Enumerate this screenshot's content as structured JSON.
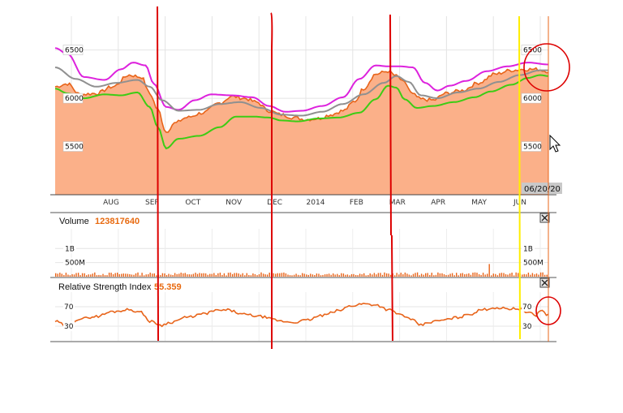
{
  "chart_data": [
    {
      "type": "area",
      "panel": "price",
      "x_ticks": [
        "AUG",
        "SEP",
        "OCT",
        "NOV",
        "DEC",
        "2014",
        "FEB",
        "MAR",
        "APR",
        "MAY",
        "JUN"
      ],
      "y_ticks": [
        6500,
        6000,
        5500
      ],
      "ylim": [
        5000,
        6850
      ],
      "date_label": "06/20/20",
      "n_points": 240,
      "series": [
        {
          "name": "price",
          "color": "#e8641a",
          "fill": "#fbb089",
          "anchors": [
            [
              0,
              6120
            ],
            [
              6,
              6150
            ],
            [
              12,
              6040
            ],
            [
              20,
              6050
            ],
            [
              28,
              6120
            ],
            [
              36,
              6240
            ],
            [
              42,
              6220
            ],
            [
              46,
              6050
            ],
            [
              50,
              5880
            ],
            [
              54,
              5650
            ],
            [
              58,
              5740
            ],
            [
              64,
              5800
            ],
            [
              72,
              5850
            ],
            [
              80,
              5950
            ],
            [
              86,
              6020
            ],
            [
              92,
              6000
            ],
            [
              98,
              5960
            ],
            [
              104,
              5870
            ],
            [
              110,
              5830
            ],
            [
              116,
              5800
            ],
            [
              122,
              5780
            ],
            [
              128,
              5790
            ],
            [
              134,
              5830
            ],
            [
              140,
              5870
            ],
            [
              146,
              5970
            ],
            [
              150,
              6100
            ],
            [
              156,
              6250
            ],
            [
              162,
              6280
            ],
            [
              166,
              6230
            ],
            [
              170,
              6160
            ],
            [
              174,
              6040
            ],
            [
              178,
              5990
            ],
            [
              184,
              5980
            ],
            [
              190,
              6050
            ],
            [
              198,
              6080
            ],
            [
              206,
              6160
            ],
            [
              214,
              6250
            ],
            [
              222,
              6290
            ],
            [
              228,
              6300
            ],
            [
              234,
              6300
            ],
            [
              240,
              6280
            ]
          ]
        },
        {
          "name": "upper-band",
          "color": "#dd22dd",
          "anchors": [
            [
              0,
              6520
            ],
            [
              6,
              6460
            ],
            [
              14,
              6220
            ],
            [
              24,
              6190
            ],
            [
              32,
              6300
            ],
            [
              38,
              6370
            ],
            [
              44,
              6340
            ],
            [
              48,
              6150
            ],
            [
              54,
              5910
            ],
            [
              60,
              5880
            ],
            [
              68,
              5980
            ],
            [
              76,
              6040
            ],
            [
              86,
              6030
            ],
            [
              96,
              6010
            ],
            [
              104,
              5920
            ],
            [
              112,
              5860
            ],
            [
              120,
              5870
            ],
            [
              130,
              5920
            ],
            [
              140,
              6010
            ],
            [
              148,
              6200
            ],
            [
              156,
              6340
            ],
            [
              162,
              6330
            ],
            [
              168,
              6330
            ],
            [
              174,
              6320
            ],
            [
              180,
              6160
            ],
            [
              186,
              6080
            ],
            [
              192,
              6130
            ],
            [
              200,
              6180
            ],
            [
              210,
              6280
            ],
            [
              220,
              6330
            ],
            [
              230,
              6370
            ],
            [
              240,
              6350
            ]
          ]
        },
        {
          "name": "moving-average",
          "color": "#909090",
          "anchors": [
            [
              0,
              6320
            ],
            [
              10,
              6200
            ],
            [
              20,
              6120
            ],
            [
              30,
              6160
            ],
            [
              40,
              6190
            ],
            [
              46,
              6120
            ],
            [
              52,
              5980
            ],
            [
              60,
              5870
            ],
            [
              70,
              5880
            ],
            [
              80,
              5940
            ],
            [
              90,
              5960
            ],
            [
              100,
              5900
            ],
            [
              110,
              5830
            ],
            [
              120,
              5820
            ],
            [
              130,
              5860
            ],
            [
              140,
              5940
            ],
            [
              150,
              6040
            ],
            [
              160,
              6160
            ],
            [
              166,
              6230
            ],
            [
              172,
              6170
            ],
            [
              178,
              6030
            ],
            [
              186,
              6000
            ],
            [
              196,
              6060
            ],
            [
              206,
              6100
            ],
            [
              216,
              6170
            ],
            [
              226,
              6240
            ],
            [
              236,
              6290
            ],
            [
              240,
              6290
            ]
          ]
        },
        {
          "name": "lower-band",
          "color": "#3ccc14",
          "anchors": [
            [
              0,
              6100
            ],
            [
              6,
              6050
            ],
            [
              14,
              6000
            ],
            [
              24,
              6040
            ],
            [
              32,
              6030
            ],
            [
              40,
              6060
            ],
            [
              46,
              5910
            ],
            [
              50,
              5700
            ],
            [
              54,
              5480
            ],
            [
              60,
              5580
            ],
            [
              70,
              5610
            ],
            [
              80,
              5700
            ],
            [
              88,
              5810
            ],
            [
              96,
              5810
            ],
            [
              104,
              5800
            ],
            [
              110,
              5770
            ],
            [
              118,
              5760
            ],
            [
              128,
              5790
            ],
            [
              138,
              5800
            ],
            [
              148,
              5850
            ],
            [
              156,
              5990
            ],
            [
              162,
              6130
            ],
            [
              166,
              6110
            ],
            [
              170,
              5990
            ],
            [
              176,
              5900
            ],
            [
              184,
              5920
            ],
            [
              194,
              5960
            ],
            [
              204,
              6010
            ],
            [
              212,
              6070
            ],
            [
              222,
              6140
            ],
            [
              230,
              6210
            ],
            [
              236,
              6240
            ],
            [
              240,
              6230
            ]
          ]
        }
      ]
    },
    {
      "type": "bar",
      "panel": "volume",
      "title": "Volume",
      "current_value": "123817640",
      "y_ticks": [
        "1B",
        "500M"
      ],
      "y_tick_values": [
        1000000000,
        500000000
      ],
      "ylim": [
        0,
        1700000000
      ],
      "n_points": 240,
      "base_volume": 90000000,
      "spike": {
        "index": 211,
        "value": 450000000
      }
    },
    {
      "type": "line",
      "panel": "rsi",
      "title": "Relative Strength Index",
      "current_value": "55.359",
      "y_ticks": [
        70,
        30
      ],
      "ylim": [
        0,
        100
      ],
      "n_points": 240,
      "series": [
        {
          "name": "rsi",
          "color": "#e8641a",
          "anchors": [
            [
              0,
              40
            ],
            [
              5,
              32
            ],
            [
              12,
              45
            ],
            [
              20,
              50
            ],
            [
              28,
              60
            ],
            [
              36,
              64
            ],
            [
              42,
              58
            ],
            [
              46,
              40
            ],
            [
              52,
              32
            ],
            [
              56,
              38
            ],
            [
              64,
              48
            ],
            [
              72,
              55
            ],
            [
              78,
              62
            ],
            [
              84,
              63
            ],
            [
              92,
              54
            ],
            [
              100,
              50
            ],
            [
              106,
              44
            ],
            [
              110,
              40
            ],
            [
              116,
              38
            ],
            [
              122,
              42
            ],
            [
              130,
              52
            ],
            [
              138,
              62
            ],
            [
              144,
              72
            ],
            [
              150,
              76
            ],
            [
              156,
              74
            ],
            [
              162,
              64
            ],
            [
              168,
              54
            ],
            [
              174,
              42
            ],
            [
              178,
              32
            ],
            [
              182,
              38
            ],
            [
              188,
              42
            ],
            [
              196,
              48
            ],
            [
              202,
              55
            ],
            [
              208,
              64
            ],
            [
              214,
              68
            ],
            [
              220,
              66
            ],
            [
              226,
              66
            ],
            [
              230,
              58
            ],
            [
              234,
              52
            ],
            [
              236,
              63
            ],
            [
              240,
              53
            ]
          ]
        }
      ]
    }
  ]
}
